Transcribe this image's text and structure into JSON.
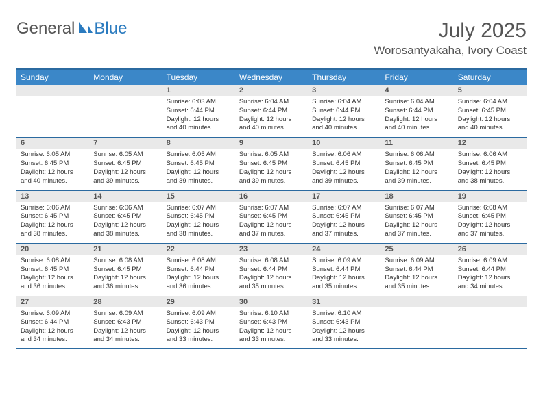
{
  "logo": {
    "general": "General",
    "blue": "Blue"
  },
  "title": "July 2025",
  "location": "Worosantyakaha, Ivory Coast",
  "colors": {
    "header_bg": "#3b87c8",
    "header_border": "#2b6aa0",
    "daynum_bg": "#e9e9e9",
    "text_gray": "#555555",
    "logo_blue": "#2b7bbf"
  },
  "dow": [
    "Sunday",
    "Monday",
    "Tuesday",
    "Wednesday",
    "Thursday",
    "Friday",
    "Saturday"
  ],
  "weeks": [
    [
      null,
      null,
      {
        "n": "1",
        "sr": "6:03 AM",
        "ss": "6:44 PM",
        "dl": "12 hours and 40 minutes."
      },
      {
        "n": "2",
        "sr": "6:04 AM",
        "ss": "6:44 PM",
        "dl": "12 hours and 40 minutes."
      },
      {
        "n": "3",
        "sr": "6:04 AM",
        "ss": "6:44 PM",
        "dl": "12 hours and 40 minutes."
      },
      {
        "n": "4",
        "sr": "6:04 AM",
        "ss": "6:44 PM",
        "dl": "12 hours and 40 minutes."
      },
      {
        "n": "5",
        "sr": "6:04 AM",
        "ss": "6:45 PM",
        "dl": "12 hours and 40 minutes."
      }
    ],
    [
      {
        "n": "6",
        "sr": "6:05 AM",
        "ss": "6:45 PM",
        "dl": "12 hours and 40 minutes."
      },
      {
        "n": "7",
        "sr": "6:05 AM",
        "ss": "6:45 PM",
        "dl": "12 hours and 39 minutes."
      },
      {
        "n": "8",
        "sr": "6:05 AM",
        "ss": "6:45 PM",
        "dl": "12 hours and 39 minutes."
      },
      {
        "n": "9",
        "sr": "6:05 AM",
        "ss": "6:45 PM",
        "dl": "12 hours and 39 minutes."
      },
      {
        "n": "10",
        "sr": "6:06 AM",
        "ss": "6:45 PM",
        "dl": "12 hours and 39 minutes."
      },
      {
        "n": "11",
        "sr": "6:06 AM",
        "ss": "6:45 PM",
        "dl": "12 hours and 39 minutes."
      },
      {
        "n": "12",
        "sr": "6:06 AM",
        "ss": "6:45 PM",
        "dl": "12 hours and 38 minutes."
      }
    ],
    [
      {
        "n": "13",
        "sr": "6:06 AM",
        "ss": "6:45 PM",
        "dl": "12 hours and 38 minutes."
      },
      {
        "n": "14",
        "sr": "6:06 AM",
        "ss": "6:45 PM",
        "dl": "12 hours and 38 minutes."
      },
      {
        "n": "15",
        "sr": "6:07 AM",
        "ss": "6:45 PM",
        "dl": "12 hours and 38 minutes."
      },
      {
        "n": "16",
        "sr": "6:07 AM",
        "ss": "6:45 PM",
        "dl": "12 hours and 37 minutes."
      },
      {
        "n": "17",
        "sr": "6:07 AM",
        "ss": "6:45 PM",
        "dl": "12 hours and 37 minutes."
      },
      {
        "n": "18",
        "sr": "6:07 AM",
        "ss": "6:45 PM",
        "dl": "12 hours and 37 minutes."
      },
      {
        "n": "19",
        "sr": "6:08 AM",
        "ss": "6:45 PM",
        "dl": "12 hours and 37 minutes."
      }
    ],
    [
      {
        "n": "20",
        "sr": "6:08 AM",
        "ss": "6:45 PM",
        "dl": "12 hours and 36 minutes."
      },
      {
        "n": "21",
        "sr": "6:08 AM",
        "ss": "6:45 PM",
        "dl": "12 hours and 36 minutes."
      },
      {
        "n": "22",
        "sr": "6:08 AM",
        "ss": "6:44 PM",
        "dl": "12 hours and 36 minutes."
      },
      {
        "n": "23",
        "sr": "6:08 AM",
        "ss": "6:44 PM",
        "dl": "12 hours and 35 minutes."
      },
      {
        "n": "24",
        "sr": "6:09 AM",
        "ss": "6:44 PM",
        "dl": "12 hours and 35 minutes."
      },
      {
        "n": "25",
        "sr": "6:09 AM",
        "ss": "6:44 PM",
        "dl": "12 hours and 35 minutes."
      },
      {
        "n": "26",
        "sr": "6:09 AM",
        "ss": "6:44 PM",
        "dl": "12 hours and 34 minutes."
      }
    ],
    [
      {
        "n": "27",
        "sr": "6:09 AM",
        "ss": "6:44 PM",
        "dl": "12 hours and 34 minutes."
      },
      {
        "n": "28",
        "sr": "6:09 AM",
        "ss": "6:43 PM",
        "dl": "12 hours and 34 minutes."
      },
      {
        "n": "29",
        "sr": "6:09 AM",
        "ss": "6:43 PM",
        "dl": "12 hours and 33 minutes."
      },
      {
        "n": "30",
        "sr": "6:10 AM",
        "ss": "6:43 PM",
        "dl": "12 hours and 33 minutes."
      },
      {
        "n": "31",
        "sr": "6:10 AM",
        "ss": "6:43 PM",
        "dl": "12 hours and 33 minutes."
      },
      null,
      null
    ]
  ],
  "labels": {
    "sunrise": "Sunrise:",
    "sunset": "Sunset:",
    "daylight": "Daylight:"
  }
}
